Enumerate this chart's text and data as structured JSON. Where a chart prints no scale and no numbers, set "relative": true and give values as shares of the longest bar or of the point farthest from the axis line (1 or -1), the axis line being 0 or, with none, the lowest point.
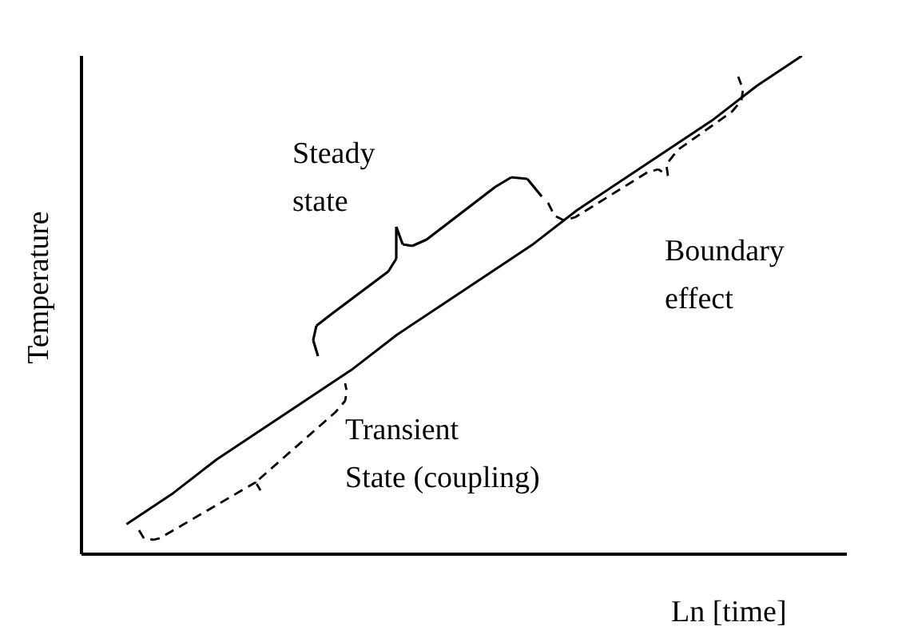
{
  "chart_data": {
    "type": "line",
    "relative": true,
    "xlabel": "Ln [time]",
    "ylabel": "Temperature",
    "categories": [
      null,
      null,
      null,
      null,
      null,
      null,
      null,
      null,
      null,
      null,
      null,
      null,
      null,
      null,
      null,
      null,
      null,
      null
    ],
    "series": [
      {
        "color": "#000000",
        "values": [
          null,
          0.06,
          0.12,
          0.19,
          0.25,
          0.31,
          0.37,
          0.44,
          0.5,
          0.56,
          0.62,
          0.69,
          0.75,
          0.81,
          0.87,
          0.94,
          1,
          null
        ]
      }
    ],
    "annotations": [
      "Steady state",
      "Boundary effect",
      "Transient State (coupling)"
    ],
    "grid": false,
    "legend": false,
    "marker": "none",
    "line_style": "solid"
  }
}
